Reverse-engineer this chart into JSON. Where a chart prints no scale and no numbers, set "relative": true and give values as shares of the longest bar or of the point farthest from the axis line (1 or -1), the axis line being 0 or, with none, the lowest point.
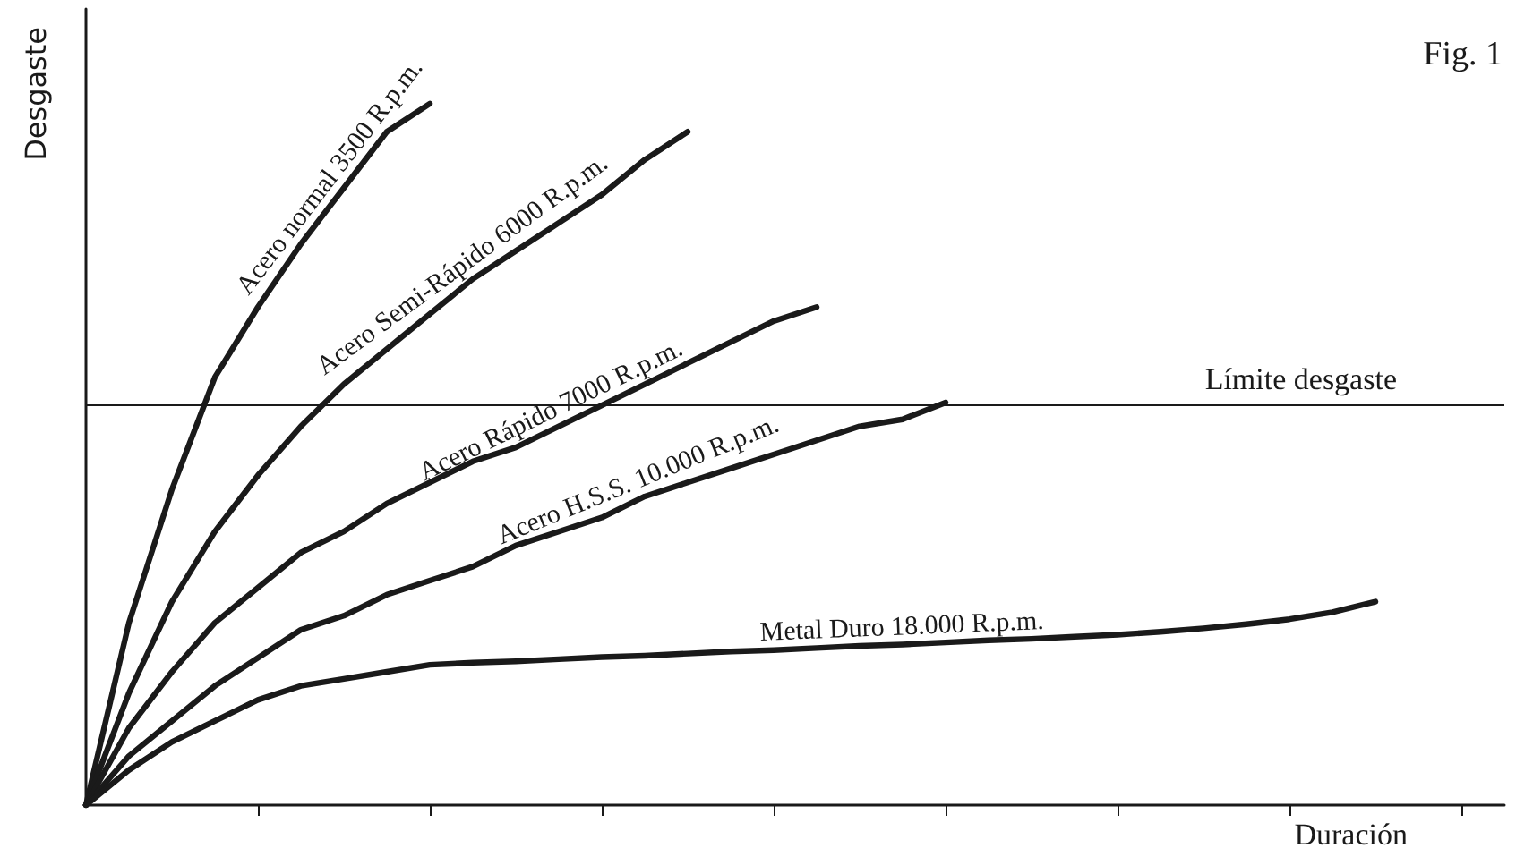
{
  "chart_data": {
    "type": "line",
    "title": "Fig. 1",
    "xlabel": "Duración",
    "ylabel": "Desgaste",
    "relative": true,
    "categories": [
      null,
      null,
      null,
      null,
      null,
      null,
      null,
      null,
      null,
      null,
      null,
      null,
      null,
      null,
      null,
      null,
      null,
      null,
      null,
      null,
      null,
      null,
      null,
      null,
      null,
      null,
      null,
      null,
      null,
      null,
      null,
      null,
      null,
      null
    ],
    "grid": false,
    "legend": false,
    "marker": "none",
    "line_style": "solid",
    "ref_lines": [
      {
        "axis": "y",
        "value": 0.574,
        "label": "Límite desgaste",
        "color": "#1a1a1a"
      }
    ],
    "series": [
      {
        "name": "Acero normal 3500 R.p.m.",
        "color": "#1a1a1a",
        "values": [
          0,
          0.26,
          0.45,
          0.61,
          0.71,
          0.8,
          0.88,
          0.96,
          1,
          null,
          null,
          null,
          null,
          null,
          null,
          null,
          null,
          null,
          null,
          null,
          null,
          null,
          null,
          null,
          null,
          null,
          null,
          null,
          null,
          null,
          null,
          null,
          null,
          null
        ]
      },
      {
        "name": "Acero Semi-Rápido 6000 R.p.m.",
        "color": "#1a1a1a",
        "values": [
          0,
          0.16,
          0.29,
          0.39,
          0.47,
          0.54,
          0.6,
          0.65,
          0.7,
          0.75,
          0.79,
          0.83,
          0.87,
          0.92,
          0.96,
          null,
          null,
          null,
          null,
          null,
          null,
          null,
          null,
          null,
          null,
          null,
          null,
          null,
          null,
          null,
          null,
          null,
          null,
          null
        ]
      },
      {
        "name": "Acero Rápido 7000 R.p.m.",
        "color": "#1a1a1a",
        "values": [
          0,
          0.11,
          0.19,
          0.26,
          0.31,
          0.36,
          0.39,
          0.43,
          0.46,
          0.49,
          0.51,
          0.54,
          0.57,
          0.6,
          0.63,
          0.66,
          0.69,
          0.71,
          null,
          null,
          null,
          null,
          null,
          null,
          null,
          null,
          null,
          null,
          null,
          null,
          null,
          null,
          null,
          null
        ]
      },
      {
        "name": "Acero H.S.S. 10.000 R.p.m.",
        "color": "#1a1a1a",
        "values": [
          0,
          0.07,
          0.12,
          0.17,
          0.21,
          0.25,
          0.27,
          0.3,
          0.32,
          0.34,
          0.37,
          0.39,
          0.41,
          0.44,
          0.46,
          0.48,
          0.5,
          0.52,
          0.54,
          0.55,
          0.574,
          null,
          null,
          null,
          null,
          null,
          null,
          null,
          null,
          null,
          null,
          null,
          null,
          null
        ]
      },
      {
        "name": "Metal Duro 18.000 R.p.m.",
        "color": "#1a1a1a",
        "values": [
          0,
          0.05,
          0.09,
          0.12,
          0.15,
          0.17,
          0.18,
          0.19,
          0.2,
          0.203,
          0.205,
          0.208,
          0.211,
          0.213,
          0.216,
          0.219,
          0.221,
          0.224,
          0.227,
          0.229,
          0.232,
          0.235,
          0.237,
          0.24,
          0.243,
          0.247,
          0.252,
          0.258,
          0.265,
          0.275,
          0.29,
          null,
          null,
          null
        ]
      }
    ]
  }
}
